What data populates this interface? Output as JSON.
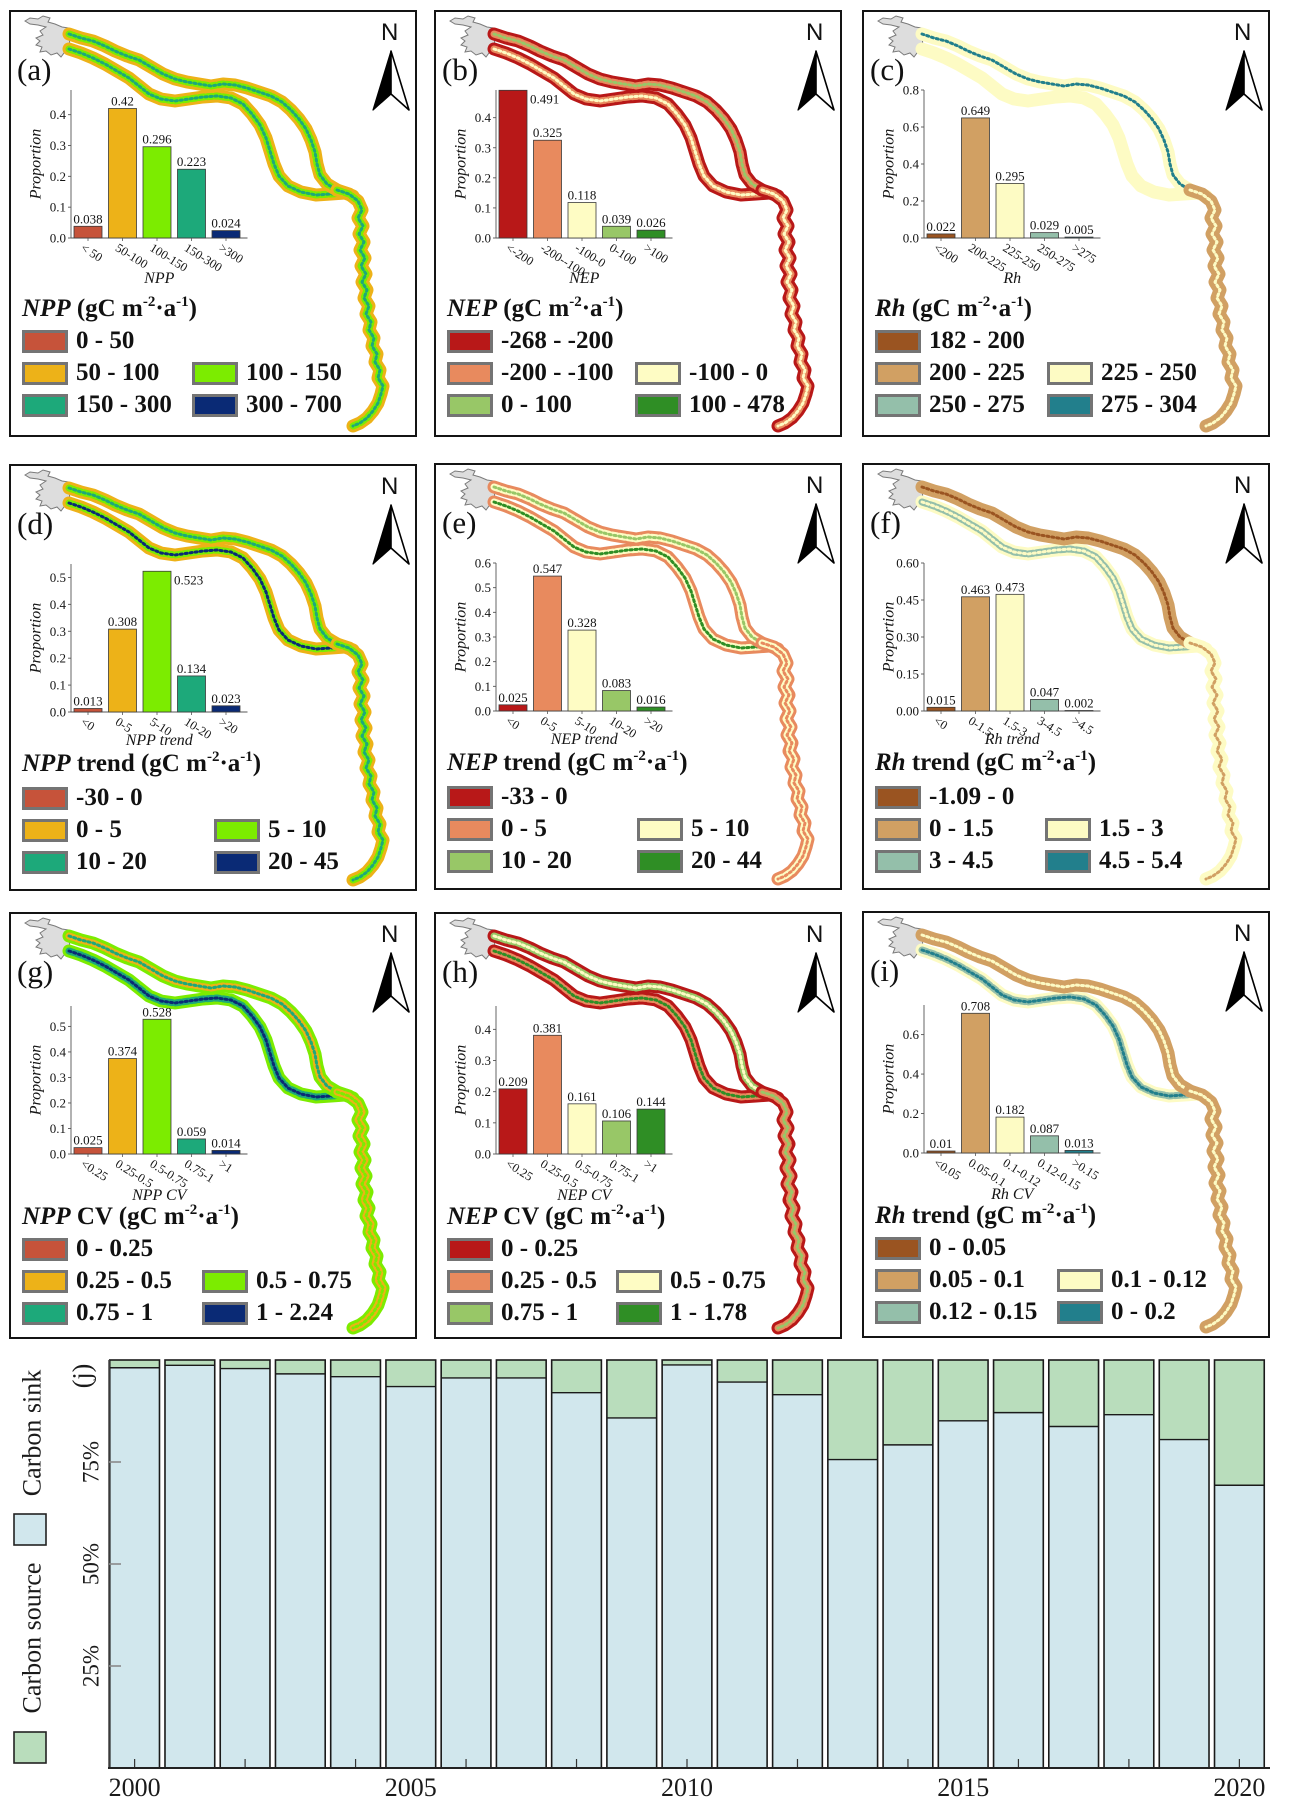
{
  "figure": {
    "north_label": "N",
    "unit": {
      "prefix": " (gC m",
      "exp1": "-2",
      "mid": "·a",
      "exp2": "-1",
      "close": ")"
    }
  },
  "panels": [
    {
      "id": "a",
      "label": "(a)",
      "legend": {
        "var": "NPP",
        "suffix": "",
        "items": [
          {
            "label": "0 - 50",
            "color": "#c6533a"
          },
          {
            "label": "50 - 100",
            "color": "#edb218"
          },
          {
            "label": "100 - 150",
            "color": "#7cec00"
          },
          {
            "label": "150 - 300",
            "color": "#1da97a"
          },
          {
            "label": "300 - 700",
            "color": "#0a2a75"
          }
        ]
      },
      "river": {
        "upper": [
          "#edb218",
          "#7cec00",
          "#1da97a"
        ],
        "lower": [
          "#edb218",
          "#7cec00",
          "#1da97a"
        ],
        "trunk": [
          "#edb218",
          "#7cec00",
          "#1da97a"
        ]
      }
    },
    {
      "id": "b",
      "label": "(b)",
      "legend": {
        "var": "NEP",
        "suffix": "",
        "items": [
          {
            "label": "-268 - -200",
            "color": "#b81818"
          },
          {
            "label": "-200 - -100",
            "color": "#e88a5e"
          },
          {
            "label": "-100 - 0",
            "color": "#fefcc4"
          },
          {
            "label": "0 - 100",
            "color": "#98c767"
          },
          {
            "label": "100 - 478",
            "color": "#2f8e25"
          }
        ]
      },
      "river": {
        "upper": [
          "#b81818",
          "#e88a5e",
          "#98c767"
        ],
        "lower": [
          "#b81818",
          "#e88a5e",
          "#fefcc4"
        ],
        "trunk": [
          "#b81818",
          "#e88a5e",
          "#fefcc4"
        ]
      }
    },
    {
      "id": "c",
      "label": "(c)",
      "legend": {
        "var": "Rh",
        "suffix": "",
        "items": [
          {
            "label": "182 - 200",
            "color": "#9a5421"
          },
          {
            "label": "200 - 225",
            "color": "#d1a063"
          },
          {
            "label": "225 - 250",
            "color": "#fdfbc4"
          },
          {
            "label": "250 - 275",
            "color": "#94bfaa"
          },
          {
            "label": "275 - 304",
            "color": "#227f8c"
          }
        ]
      },
      "river": {
        "upper": [
          "#fdfbc4",
          "#fdfbc4",
          "#227f8c"
        ],
        "lower": [
          "#fdfbc4",
          "#fdfbc4",
          "#fdfbc4"
        ],
        "trunk": [
          "#d1a063",
          "#d1a063",
          "#fdfbc4"
        ]
      }
    },
    {
      "id": "d",
      "label": "(d)",
      "legend": {
        "var": "NPP",
        "suffix": " trend",
        "items": [
          {
            "label": "-30 - 0",
            "color": "#c6533a"
          },
          {
            "label": "0 - 5",
            "color": "#edb218"
          },
          {
            "label": "5 - 10",
            "color": "#7cec00"
          },
          {
            "label": "10 - 20",
            "color": "#1da97a"
          },
          {
            "label": "20 - 45",
            "color": "#0a2a75"
          }
        ]
      },
      "river": {
        "upper": [
          "#edb218",
          "#7cec00",
          "#1da97a"
        ],
        "lower": [
          "#edb218",
          "#7cec00",
          "#0a2a75"
        ],
        "trunk": [
          "#edb218",
          "#7cec00",
          "#1da97a"
        ]
      }
    },
    {
      "id": "e",
      "label": "(e)",
      "legend": {
        "var": "NEP",
        "suffix": " trend",
        "items": [
          {
            "label": "-33 - 0",
            "color": "#b81818"
          },
          {
            "label": "0 - 5",
            "color": "#e88a5e"
          },
          {
            "label": "5 - 10",
            "color": "#fefcc4"
          },
          {
            "label": "10 - 20",
            "color": "#98c767"
          },
          {
            "label": "20 - 44",
            "color": "#2f8e25"
          }
        ]
      },
      "river": {
        "upper": [
          "#e88a5e",
          "#fefcc4",
          "#98c767"
        ],
        "lower": [
          "#e88a5e",
          "#fefcc4",
          "#2f8e25"
        ],
        "trunk": [
          "#e88a5e",
          "#fefcc4",
          "#e88a5e"
        ]
      }
    },
    {
      "id": "f",
      "label": "(f)",
      "legend": {
        "var": "Rh",
        "suffix": " trend",
        "items": [
          {
            "label": "-1.09 - 0",
            "color": "#9a5421"
          },
          {
            "label": "0 - 1.5",
            "color": "#d1a063"
          },
          {
            "label": "1.5 - 3",
            "color": "#fdfbc4"
          },
          {
            "label": "3 - 4.5",
            "color": "#94bfaa"
          },
          {
            "label": "4.5 - 5.4",
            "color": "#227f8c"
          }
        ]
      },
      "river": {
        "upper": [
          "#d1a063",
          "#d1a063",
          "#9a5421"
        ],
        "lower": [
          "#fdfbc4",
          "#94bfaa",
          "#fdfbc4"
        ],
        "trunk": [
          "#fdfbc4",
          "#fdfbc4",
          "#d1a063"
        ]
      }
    },
    {
      "id": "g",
      "label": "(g)",
      "legend": {
        "var": "NPP",
        "suffix": " CV",
        "items": [
          {
            "label": "0 - 0.25",
            "color": "#c6533a"
          },
          {
            "label": "0.25 - 0.5",
            "color": "#edb218"
          },
          {
            "label": "0.5 - 0.75",
            "color": "#7cec00"
          },
          {
            "label": "0.75 - 1",
            "color": "#1da97a"
          },
          {
            "label": "1 - 2.24",
            "color": "#0a2a75"
          }
        ]
      },
      "river": {
        "upper": [
          "#7cec00",
          "#edb218",
          "#1da97a"
        ],
        "lower": [
          "#7cec00",
          "#1da97a",
          "#0a2a75"
        ],
        "trunk": [
          "#7cec00",
          "#edb218",
          "#7cec00"
        ]
      }
    },
    {
      "id": "h",
      "label": "(h)",
      "legend": {
        "var": "NEP",
        "suffix": " CV",
        "items": [
          {
            "label": "0 - 0.25",
            "color": "#b81818"
          },
          {
            "label": "0.25 - 0.5",
            "color": "#e88a5e"
          },
          {
            "label": "0.5 - 0.75",
            "color": "#fefcc4"
          },
          {
            "label": "0.75 - 1",
            "color": "#98c767"
          },
          {
            "label": "1 - 1.78",
            "color": "#2f8e25"
          }
        ]
      },
      "river": {
        "upper": [
          "#b81818",
          "#98c767",
          "#fefcc4"
        ],
        "lower": [
          "#b81818",
          "#e88a5e",
          "#2f8e25"
        ],
        "trunk": [
          "#b81818",
          "#e88a5e",
          "#98c767"
        ]
      }
    },
    {
      "id": "i",
      "label": "(i)",
      "legend": {
        "var": "Rh",
        "suffix": " trend",
        "items": [
          {
            "label": "0 - 0.05",
            "color": "#9a5421"
          },
          {
            "label": "0.05 - 0.1",
            "color": "#d1a063"
          },
          {
            "label": "0.1 - 0.12",
            "color": "#fdfbc4"
          },
          {
            "label": "0.12 - 0.15",
            "color": "#94bfaa"
          },
          {
            "label": "0 - 0.2",
            "color": "#227f8c"
          }
        ]
      },
      "river": {
        "upper": [
          "#d1a063",
          "#d1a063",
          "#fdfbc4"
        ],
        "lower": [
          "#fdfbc4",
          "#94bfaa",
          "#227f8c"
        ],
        "trunk": [
          "#d1a063",
          "#d1a063",
          "#fdfbc4"
        ]
      }
    }
  ],
  "chart_data": [
    {
      "panel": "a",
      "type": "bar",
      "title": "",
      "xlabel": "NPP",
      "ylabel": "Proportion",
      "categories": [
        "< 50",
        "50-100",
        "100-150",
        "150-300",
        ">300"
      ],
      "values": [
        0.038,
        0.42,
        0.296,
        0.223,
        0.024
      ],
      "value_labels": [
        "0.038",
        "0.42",
        "0.296",
        "0.223",
        "0.024"
      ],
      "colors": [
        "#c6533a",
        "#edb218",
        "#7cec00",
        "#1da97a",
        "#0a2a75"
      ],
      "ylim": [
        0,
        0.48
      ],
      "yticks": [
        0,
        0.1,
        0.2,
        0.3,
        0.4
      ],
      "ytick_labels": [
        "0.0",
        "0.1",
        "0.2",
        "0.3",
        "0.4"
      ],
      "grid": false
    },
    {
      "panel": "b",
      "type": "bar",
      "title": "",
      "xlabel": "NEP",
      "ylabel": "Proportion",
      "categories": [
        "<-200",
        "-200--100",
        "-100-0",
        "0-100",
        ">100"
      ],
      "values": [
        0.491,
        0.325,
        0.118,
        0.039,
        0.026
      ],
      "value_labels": [
        "0.491",
        "0.325",
        "0.118",
        "0.039",
        "0.026"
      ],
      "colors": [
        "#b81818",
        "#e88a5e",
        "#fefcc4",
        "#98c767",
        "#2f8e25"
      ],
      "ylim": [
        0,
        0.492
      ],
      "yticks": [
        0,
        0.1,
        0.2,
        0.3,
        0.4
      ],
      "ytick_labels": [
        "0.0",
        "0.1",
        "0.2",
        "0.3",
        "0.4"
      ],
      "grid": false
    },
    {
      "panel": "c",
      "type": "bar",
      "title": "",
      "xlabel": "Rh",
      "ylabel": "Proportion",
      "categories": [
        "<200",
        "200-225",
        "225-250",
        "250-275",
        ">275"
      ],
      "values": [
        0.022,
        0.649,
        0.295,
        0.029,
        0.005
      ],
      "value_labels": [
        "0.022",
        "0.649",
        "0.295",
        "0.029",
        "0.005"
      ],
      "colors": [
        "#9a5421",
        "#d1a063",
        "#fdfbc4",
        "#94bfaa",
        "#227f8c"
      ],
      "ylim": [
        0,
        0.8
      ],
      "yticks": [
        0,
        0.2,
        0.4,
        0.6,
        0.8
      ],
      "ytick_labels": [
        "0.0",
        "0.2",
        "0.4",
        "0.6",
        "0.8"
      ],
      "grid": false
    },
    {
      "panel": "d",
      "type": "bar",
      "title": "",
      "xlabel": "NPP trend",
      "ylabel": "Proportion",
      "categories": [
        "<0",
        "0-5",
        "5-10",
        "10-20",
        ">20"
      ],
      "values": [
        0.013,
        0.308,
        0.523,
        0.134,
        0.023
      ],
      "value_labels": [
        "0.013",
        "0.308",
        "0.523",
        "0.134",
        "0.023"
      ],
      "colors": [
        "#c6533a",
        "#edb218",
        "#7cec00",
        "#1da97a",
        "#0a2a75"
      ],
      "ylim": [
        0,
        0.55
      ],
      "yticks": [
        0,
        0.1,
        0.2,
        0.3,
        0.4,
        0.5
      ],
      "ytick_labels": [
        "0.0",
        "0.1",
        "0.2",
        "0.3",
        "0.4",
        "0.5"
      ],
      "grid": false
    },
    {
      "panel": "e",
      "type": "bar",
      "title": "",
      "xlabel": "NEP trend",
      "ylabel": "Proportion",
      "categories": [
        "<0",
        "0-5",
        "5-10",
        "10-20",
        ">20"
      ],
      "values": [
        0.025,
        0.547,
        0.328,
        0.083,
        0.016
      ],
      "value_labels": [
        "0.025",
        "0.547",
        "0.328",
        "0.083",
        "0.016"
      ],
      "colors": [
        "#b81818",
        "#e88a5e",
        "#fefcc4",
        "#98c767",
        "#2f8e25"
      ],
      "ylim": [
        0,
        0.6
      ],
      "yticks": [
        0,
        0.1,
        0.2,
        0.3,
        0.4,
        0.5,
        0.6
      ],
      "ytick_labels": [
        "0.0",
        "0.1",
        "0.2",
        "0.3",
        "0.4",
        "0.5",
        "0.6"
      ],
      "grid": false
    },
    {
      "panel": "f",
      "type": "bar",
      "title": "",
      "xlabel": "Rh trend",
      "ylabel": "Proportion",
      "categories": [
        "<0",
        "0-1.5",
        "1.5-3",
        "3-4.5",
        ">4.5"
      ],
      "values": [
        0.015,
        0.463,
        0.473,
        0.047,
        0.002
      ],
      "value_labels": [
        "0.015",
        "0.463",
        "0.473",
        "0.047",
        "0.002"
      ],
      "colors": [
        "#9a5421",
        "#d1a063",
        "#fdfbc4",
        "#94bfaa",
        "#227f8c"
      ],
      "ylim": [
        0,
        0.6
      ],
      "yticks": [
        0,
        0.15,
        0.3,
        0.45,
        0.6
      ],
      "ytick_labels": [
        "0.00",
        "0.15",
        "0.30",
        "0.45",
        "0.60"
      ],
      "grid": false
    },
    {
      "panel": "g",
      "type": "bar",
      "title": "",
      "xlabel": "NPP CV",
      "ylabel": "Proportion",
      "categories": [
        "<0.25",
        "0.25-0.5",
        "0.5-0.75",
        "0.75-1",
        ">1"
      ],
      "values": [
        0.025,
        0.374,
        0.528,
        0.059,
        0.014
      ],
      "value_labels": [
        "0.025",
        "0.374",
        "0.528",
        "0.059",
        "0.014"
      ],
      "colors": [
        "#c6533a",
        "#edb218",
        "#7cec00",
        "#1da97a",
        "#0a2a75"
      ],
      "ylim": [
        0,
        0.58
      ],
      "yticks": [
        0,
        0.1,
        0.2,
        0.3,
        0.4,
        0.5
      ],
      "ytick_labels": [
        "0.0",
        "0.1",
        "0.2",
        "0.3",
        "0.4",
        "0.5"
      ],
      "grid": false
    },
    {
      "panel": "h",
      "type": "bar",
      "title": "",
      "xlabel": "NEP CV",
      "ylabel": "Proportion",
      "categories": [
        "<0.25",
        "0.25-0.5",
        "0.5-0.75",
        "0.75-1",
        ">1"
      ],
      "values": [
        0.209,
        0.381,
        0.161,
        0.106,
        0.144
      ],
      "value_labels": [
        "0.209",
        "0.381",
        "0.161",
        "0.106",
        "0.144"
      ],
      "colors": [
        "#b81818",
        "#e88a5e",
        "#fefcc4",
        "#98c767",
        "#2f8e25"
      ],
      "ylim": [
        0,
        0.475
      ],
      "yticks": [
        0,
        0.1,
        0.2,
        0.3,
        0.4
      ],
      "ytick_labels": [
        "0.0",
        "0.1",
        "0.2",
        "0.3",
        "0.4"
      ],
      "grid": false
    },
    {
      "panel": "i",
      "type": "bar",
      "title": "",
      "xlabel": "Rh CV",
      "ylabel": "Proportion",
      "categories": [
        "<0.05",
        "0.05-0.1",
        "0.1-0.12",
        "0.12-0.15",
        ">0.15"
      ],
      "values": [
        0.01,
        0.708,
        0.182,
        0.087,
        0.013
      ],
      "value_labels": [
        "0.01",
        "0.708",
        "0.182",
        "0.087",
        "0.013"
      ],
      "colors": [
        "#9a5421",
        "#d1a063",
        "#fdfbc4",
        "#94bfaa",
        "#227f8c"
      ],
      "ylim": [
        0,
        0.75
      ],
      "yticks": [
        0,
        0.2,
        0.4,
        0.6
      ],
      "ytick_labels": [
        "0.0",
        "0.2",
        "0.4",
        "0.6"
      ],
      "grid": false
    },
    {
      "panel": "j",
      "type": "bar",
      "stacked": true,
      "label": "(j)",
      "title": "",
      "xlabel": "",
      "ylabel": "",
      "categories": [
        "2000",
        "2001",
        "2002",
        "2003",
        "2004",
        "2005",
        "2006",
        "2007",
        "2008",
        "2009",
        "2010",
        "2011",
        "2012",
        "2013",
        "2014",
        "2015",
        "2016",
        "2017",
        "2018",
        "2019",
        "2020"
      ],
      "series": [
        {
          "name": "Carbon sink",
          "color": "#d1e7ed",
          "values": [
            98.1,
            98.7,
            97.9,
            96.6,
            95.9,
            93.5,
            95.6,
            95.6,
            92.0,
            85.8,
            98.8,
            94.6,
            91.5,
            75.6,
            79.2,
            85.1,
            87.1,
            83.7,
            86.6,
            80.5,
            69.3
          ]
        },
        {
          "name": "Carbon source",
          "color": "#b9ddbc",
          "values": [
            1.9,
            1.3,
            2.1,
            3.4,
            4.1,
            6.5,
            4.4,
            4.4,
            8.0,
            14.2,
            1.2,
            5.4,
            8.5,
            24.4,
            20.8,
            14.9,
            12.9,
            16.3,
            13.4,
            19.5,
            30.7
          ]
        }
      ],
      "ylim": [
        0,
        100
      ],
      "yticks": [
        25,
        50,
        75
      ],
      "ytick_labels": [
        "25%",
        "50%",
        "75%"
      ],
      "xtick_labels": [
        "2000",
        "2005",
        "2010",
        "2015",
        "2020"
      ],
      "legend": [
        "Carbon source",
        "Carbon sink"
      ],
      "legend_position": "left",
      "grid": false
    }
  ]
}
